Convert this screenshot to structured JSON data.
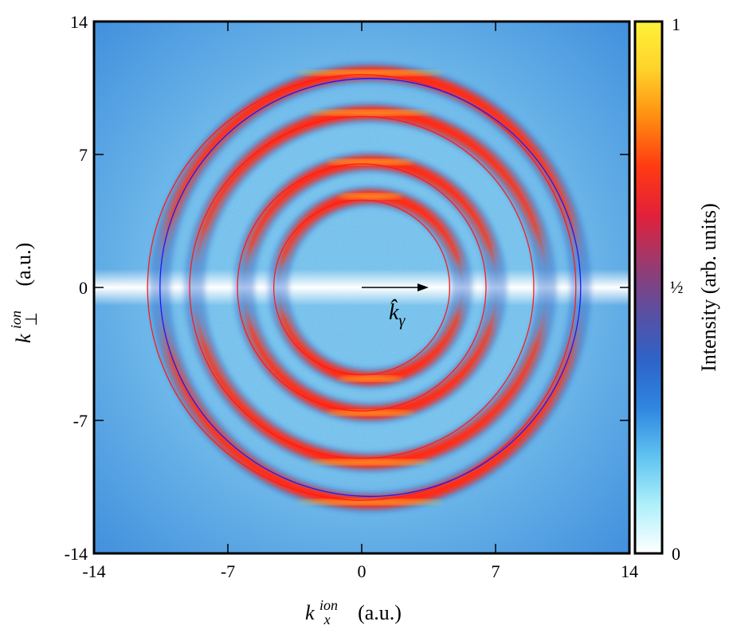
{
  "chart_data": {
    "type": "heatmap",
    "title": "",
    "xlabel": {
      "symbol": "k",
      "subscript": "x",
      "superscript": "ion",
      "unit": "(a.u.)"
    },
    "ylabel": {
      "symbol": "k",
      "subscript": "⊥",
      "superscript": "ion",
      "unit": "(a.u.)"
    },
    "xlim": [
      -14,
      14
    ],
    "ylim": [
      -14,
      14
    ],
    "xticks": [
      -14,
      -7,
      0,
      7,
      14
    ],
    "yticks": [
      -14,
      -7,
      0,
      7,
      14
    ],
    "xtick_labels": [
      "-14",
      "-7",
      "0",
      "7",
      "14"
    ],
    "ytick_labels": [
      "-14",
      "-7",
      "0",
      "7",
      "14"
    ],
    "colorbar": {
      "label": "Intensity (arb. units)",
      "range": [
        0,
        1
      ],
      "tick_labels": [
        "1",
        "½",
        "0"
      ],
      "colormap": [
        "#ffffff",
        "#aef0fa",
        "#5fc3f0",
        "#2f86e0",
        "#2e63c8",
        "#5a4fa0",
        "#9a3a6e",
        "#e3203a",
        "#ff3a12",
        "#ff8c10",
        "#ffd22a",
        "#fff23a"
      ]
    },
    "background_colors": {
      "outer": "#3f8fdd",
      "inner": "#7cc7ee",
      "center_band": "#ffffff"
    },
    "rings": [
      {
        "name": "ring-1",
        "center_x": 0.45,
        "center_y": 0,
        "radius": 11.0,
        "peak_y_top": 11.3,
        "peak_y_bottom": -11.3,
        "peak_color": "#ff3a12"
      },
      {
        "name": "ring-2",
        "center_x": 0.45,
        "center_y": 0,
        "radius": 9.2,
        "peak_y_top": 9.2,
        "peak_y_bottom": -9.2,
        "peak_color": "#f02a20"
      },
      {
        "name": "ring-3",
        "center_x": 0.45,
        "center_y": 0,
        "radius": 6.6,
        "peak_y_top": 6.6,
        "peak_y_bottom": -6.6,
        "peak_color": "#ff3016"
      },
      {
        "name": "ring-4",
        "center_x": 0.45,
        "center_y": 0,
        "radius": 4.8,
        "peak_y_top": 4.8,
        "peak_y_bottom": -4.8,
        "peak_color": "#ff2a18"
      }
    ],
    "fit_circles": [
      {
        "name": "red-fit-1",
        "color": "red",
        "cx": 0,
        "cy": 0,
        "r": 11.2
      },
      {
        "name": "red-fit-2",
        "color": "red",
        "cx": 0,
        "cy": 0,
        "r": 9.0
      },
      {
        "name": "red-fit-3",
        "color": "red",
        "cx": 0,
        "cy": 0,
        "r": 6.5
      },
      {
        "name": "red-fit-4",
        "color": "red",
        "cx": 0,
        "cy": 0,
        "r": 4.6
      },
      {
        "name": "blue-fit",
        "color": "blue",
        "cx": 0.45,
        "cy": 0,
        "r": 11.0
      }
    ],
    "annotation": {
      "text": "k̂",
      "subscript": "γ",
      "arrow_from": [
        0,
        0
      ],
      "arrow_to": [
        3.5,
        0
      ]
    }
  }
}
